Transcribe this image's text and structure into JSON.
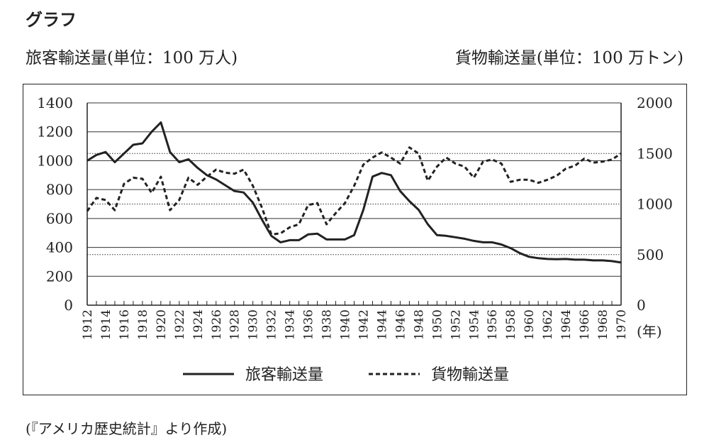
{
  "header": {
    "title": "グラフ",
    "left_unit": "旅客輸送量(単位：100 万人)",
    "right_unit": "貨物輸送量(単位：100 万トン)"
  },
  "source": "(『アメリカ歴史統計』より作成)",
  "chart_data": {
    "type": "line",
    "x_unit_label": "(年)",
    "x_ticks": [
      "1912",
      "1914",
      "1916",
      "1918",
      "1920",
      "1922",
      "1924",
      "1926",
      "1928",
      "1930",
      "1932",
      "1934",
      "1936",
      "1938",
      "1940",
      "1942",
      "1944",
      "1946",
      "1948",
      "1950",
      "1952",
      "1954",
      "1956",
      "1958",
      "1960",
      "1962",
      "1964",
      "1966",
      "1968",
      "1970"
    ],
    "y_left": {
      "ticks": [
        "1400",
        "1200",
        "1000",
        "800",
        "600",
        "400",
        "200",
        "0"
      ],
      "range": [
        0,
        1400
      ]
    },
    "y_right": {
      "ticks": [
        "2000",
        "1500",
        "1000",
        "500",
        "0"
      ],
      "range": [
        0,
        2000
      ],
      "grid": "dotted"
    },
    "x": [
      1912,
      1913,
      1914,
      1915,
      1916,
      1917,
      1918,
      1919,
      1920,
      1921,
      1922,
      1923,
      1924,
      1925,
      1926,
      1927,
      1928,
      1929,
      1930,
      1931,
      1932,
      1933,
      1934,
      1935,
      1936,
      1937,
      1938,
      1939,
      1940,
      1941,
      1942,
      1943,
      1944,
      1945,
      1946,
      1947,
      1948,
      1949,
      1950,
      1951,
      1952,
      1953,
      1954,
      1955,
      1956,
      1957,
      1958,
      1959,
      1960,
      1961,
      1962,
      1963,
      1964,
      1965,
      1966,
      1967,
      1968,
      1969,
      1970
    ],
    "series": [
      {
        "name": "旅客輸送量",
        "axis": "left",
        "style": "solid",
        "values": [
          1000,
          1040,
          1060,
          990,
          1050,
          1110,
          1120,
          1200,
          1265,
          1060,
          990,
          1010,
          950,
          900,
          870,
          830,
          790,
          780,
          710,
          590,
          480,
          435,
          450,
          450,
          490,
          495,
          455,
          455,
          455,
          485,
          660,
          890,
          915,
          900,
          790,
          720,
          660,
          560,
          485,
          480,
          470,
          460,
          445,
          435,
          435,
          420,
          395,
          360,
          335,
          325,
          320,
          318,
          320,
          315,
          315,
          310,
          310,
          305,
          295
        ],
        "color": "#222222"
      },
      {
        "name": "貨物輸送量",
        "axis": "right",
        "style": "dashed",
        "values": [
          930,
          1060,
          1040,
          940,
          1200,
          1260,
          1250,
          1110,
          1270,
          940,
          1040,
          1260,
          1190,
          1270,
          1340,
          1310,
          1300,
          1340,
          1180,
          960,
          700,
          710,
          770,
          800,
          990,
          1010,
          800,
          910,
          1010,
          1180,
          1390,
          1460,
          1510,
          1460,
          1400,
          1560,
          1500,
          1230,
          1370,
          1460,
          1400,
          1370,
          1260,
          1420,
          1440,
          1400,
          1220,
          1240,
          1240,
          1210,
          1240,
          1280,
          1350,
          1380,
          1450,
          1410,
          1420,
          1440,
          1500
        ]
      }
    ],
    "legend": {
      "placement": "bottom-center"
    },
    "grid": {
      "left_axis": "solid",
      "right_axis": "dotted"
    }
  }
}
